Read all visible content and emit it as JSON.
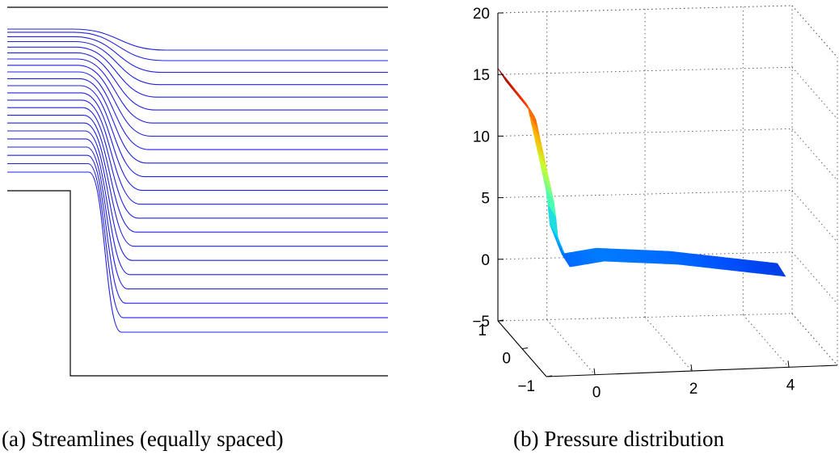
{
  "panels": [
    {
      "caption": "(a) Streamlines (equally spaced)",
      "chart_data": {
        "type": "line",
        "streamline_count": 22,
        "streamline_color": "#2020e0",
        "geometry": "backward-facing step channel",
        "grid": false
      }
    },
    {
      "caption": "(b) Pressure distribution",
      "chart_data": {
        "type": "surface",
        "colormap": "jet",
        "colormap_stops": [
          "#00008f",
          "#0050ff",
          "#00c8ff",
          "#50ffb0",
          "#c8ff30",
          "#ffb000",
          "#ff3000",
          "#800000"
        ],
        "z_ticks": [
          "20",
          "15",
          "10",
          "5",
          "0",
          "−5"
        ],
        "z_values": [
          20,
          15,
          10,
          5,
          0,
          -5
        ],
        "x_ticks": [
          "0",
          "2",
          "4"
        ],
        "x_values": [
          0,
          2,
          4
        ],
        "y_ticks": [
          "1",
          "0",
          "−1"
        ],
        "y_values": [
          1,
          0,
          -1
        ],
        "zlim": [
          -5,
          20
        ],
        "grid": true,
        "surface_profile": {
          "x": [
            -1.0,
            -0.4,
            0.0,
            0.05,
            0.3,
            1.0,
            2.5,
            4.7
          ],
          "z": [
            15.5,
            12.5,
            5.2,
            2.8,
            0.3,
            0.7,
            0.3,
            -0.9
          ]
        }
      }
    }
  ]
}
